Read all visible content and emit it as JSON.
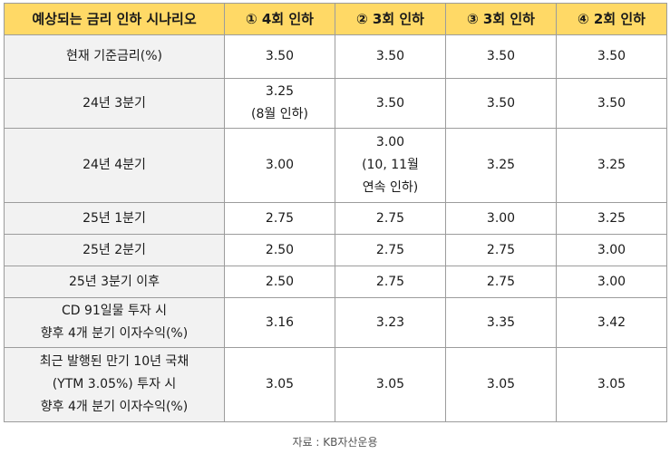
{
  "header": {
    "scenario": "예상되는 금리 인하 시나리오",
    "col1": "① 4회 인하",
    "col2": "② 3회 인하",
    "col3": "③ 3회 인하",
    "col4": "④ 2회 인하"
  },
  "rows": [
    {
      "label": [
        "현재 기준금리(%)"
      ],
      "c1": [
        "3.50"
      ],
      "c2": [
        "3.50"
      ],
      "c3": [
        "3.50"
      ],
      "c4": [
        "3.50"
      ]
    },
    {
      "label": [
        "24년 3분기"
      ],
      "c1": [
        "3.25",
        "(8월 인하)"
      ],
      "c2": [
        "3.50"
      ],
      "c3": [
        "3.50"
      ],
      "c4": [
        "3.50"
      ]
    },
    {
      "label": [
        "24년 4분기"
      ],
      "c1": [
        "3.00"
      ],
      "c2": [
        "3.00",
        "(10, 11월",
        "연속 인하)"
      ],
      "c3": [
        "3.25"
      ],
      "c4": [
        "3.25"
      ]
    },
    {
      "label": [
        "25년 1분기"
      ],
      "c1": [
        "2.75"
      ],
      "c2": [
        "2.75"
      ],
      "c3": [
        "3.00"
      ],
      "c4": [
        "3.25"
      ]
    },
    {
      "label": [
        "25년 2분기"
      ],
      "c1": [
        "2.50"
      ],
      "c2": [
        "2.75"
      ],
      "c3": [
        "2.75"
      ],
      "c4": [
        "3.00"
      ]
    },
    {
      "label": [
        "25년 3분기 이후"
      ],
      "c1": [
        "2.50"
      ],
      "c2": [
        "2.75"
      ],
      "c3": [
        "2.75"
      ],
      "c4": [
        "3.00"
      ]
    },
    {
      "label": [
        "CD 91일물 투자 시",
        "향후 4개 분기 이자수익(%)"
      ],
      "c1": [
        "3.16"
      ],
      "c2": [
        "3.23"
      ],
      "c3": [
        "3.35"
      ],
      "c4": [
        "3.42"
      ]
    },
    {
      "label": [
        "최근 발행된 만기 10년 국채",
        "(YTM 3.05%) 투자 시",
        "향후 4개 분기 이자수익(%)"
      ],
      "c1": [
        "3.05"
      ],
      "c2": [
        "3.05"
      ],
      "c3": [
        "3.05"
      ],
      "c4": [
        "3.05"
      ]
    }
  ],
  "source": "자료 : KB자산운용",
  "colors": {
    "header_bg": "#ffd966",
    "label_bg": "#f2f2f2",
    "border": "#9c9c9c"
  }
}
